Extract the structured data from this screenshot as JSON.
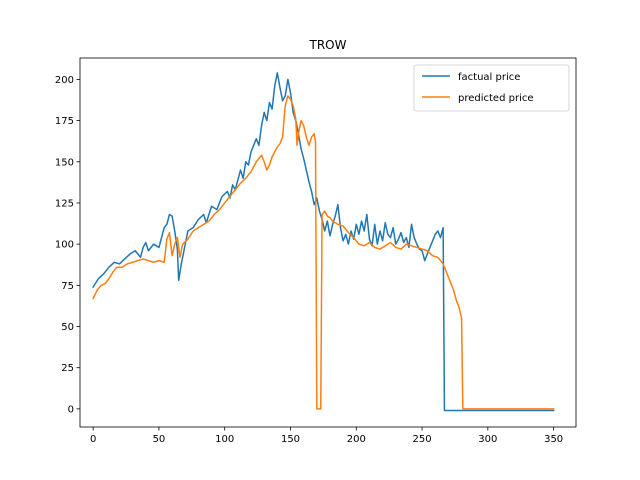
{
  "chart_data": {
    "type": "line",
    "title": "TROW",
    "xlabel": "",
    "ylabel": "",
    "xlim": [
      -10,
      367
    ],
    "ylim": [
      -11,
      213
    ],
    "xticks": [
      0,
      50,
      100,
      150,
      200,
      250,
      300,
      350
    ],
    "yticks": [
      0,
      25,
      50,
      75,
      100,
      125,
      150,
      175,
      200
    ],
    "grid": false,
    "legend_position": "top-right",
    "series": [
      {
        "name": "factual price",
        "color": "#1f77b4",
        "points": [
          [
            0,
            74
          ],
          [
            4,
            79
          ],
          [
            8,
            82
          ],
          [
            12,
            86
          ],
          [
            16,
            89
          ],
          [
            20,
            88
          ],
          [
            24,
            91
          ],
          [
            28,
            94
          ],
          [
            32,
            96
          ],
          [
            36,
            92
          ],
          [
            38,
            98
          ],
          [
            40,
            101
          ],
          [
            42,
            96
          ],
          [
            46,
            100
          ],
          [
            50,
            98
          ],
          [
            52,
            104
          ],
          [
            54,
            110
          ],
          [
            56,
            112
          ],
          [
            58,
            118
          ],
          [
            60,
            117
          ],
          [
            62,
            108
          ],
          [
            64,
            97
          ],
          [
            65,
            78
          ],
          [
            67,
            88
          ],
          [
            70,
            100
          ],
          [
            72,
            108
          ],
          [
            76,
            110
          ],
          [
            80,
            115
          ],
          [
            84,
            118
          ],
          [
            86,
            113
          ],
          [
            90,
            123
          ],
          [
            94,
            121
          ],
          [
            98,
            129
          ],
          [
            102,
            132
          ],
          [
            104,
            128
          ],
          [
            106,
            136
          ],
          [
            108,
            133
          ],
          [
            110,
            139
          ],
          [
            112,
            145
          ],
          [
            114,
            140
          ],
          [
            116,
            150
          ],
          [
            118,
            148
          ],
          [
            120,
            156
          ],
          [
            124,
            164
          ],
          [
            126,
            160
          ],
          [
            128,
            172
          ],
          [
            130,
            180
          ],
          [
            132,
            175
          ],
          [
            134,
            186
          ],
          [
            136,
            182
          ],
          [
            138,
            196
          ],
          [
            140,
            204
          ],
          [
            142,
            195
          ],
          [
            144,
            187
          ],
          [
            146,
            190
          ],
          [
            148,
            200
          ],
          [
            150,
            192
          ],
          [
            152,
            180
          ],
          [
            154,
            175
          ],
          [
            156,
            167
          ],
          [
            158,
            158
          ],
          [
            160,
            152
          ],
          [
            162,
            145
          ],
          [
            164,
            138
          ],
          [
            166,
            132
          ],
          [
            168,
            124
          ],
          [
            170,
            128
          ],
          [
            172,
            120
          ],
          [
            174,
            115
          ],
          [
            176,
            108
          ],
          [
            178,
            114
          ],
          [
            180,
            105
          ],
          [
            182,
            112
          ],
          [
            184,
            117
          ],
          [
            186,
            124
          ],
          [
            188,
            110
          ],
          [
            190,
            102
          ],
          [
            192,
            106
          ],
          [
            194,
            100
          ],
          [
            196,
            108
          ],
          [
            198,
            103
          ],
          [
            200,
            112
          ],
          [
            202,
            106
          ],
          [
            204,
            114
          ],
          [
            206,
            108
          ],
          [
            208,
            118
          ],
          [
            210,
            103
          ],
          [
            212,
            99
          ],
          [
            214,
            112
          ],
          [
            216,
            100
          ],
          [
            218,
            108
          ],
          [
            220,
            102
          ],
          [
            222,
            113
          ],
          [
            224,
            106
          ],
          [
            226,
            104
          ],
          [
            228,
            110
          ],
          [
            230,
            100
          ],
          [
            232,
            103
          ],
          [
            234,
            107
          ],
          [
            236,
            101
          ],
          [
            238,
            104
          ],
          [
            240,
            98
          ],
          [
            242,
            112
          ],
          [
            244,
            104
          ],
          [
            246,
            100
          ],
          [
            248,
            97
          ],
          [
            250,
            96
          ],
          [
            252,
            90
          ],
          [
            254,
            94
          ],
          [
            256,
            98
          ],
          [
            258,
            102
          ],
          [
            260,
            106
          ],
          [
            262,
            108
          ],
          [
            264,
            104
          ],
          [
            266,
            110
          ],
          [
            267,
            -1
          ],
          [
            350,
            -1
          ]
        ]
      },
      {
        "name": "predicted price",
        "color": "#ff7f0e",
        "points": [
          [
            0,
            67
          ],
          [
            3,
            72
          ],
          [
            6,
            75
          ],
          [
            9,
            76
          ],
          [
            12,
            79
          ],
          [
            15,
            83
          ],
          [
            18,
            86
          ],
          [
            22,
            86
          ],
          [
            26,
            88
          ],
          [
            30,
            89
          ],
          [
            34,
            90
          ],
          [
            38,
            91
          ],
          [
            42,
            90
          ],
          [
            46,
            89
          ],
          [
            50,
            90
          ],
          [
            54,
            89
          ],
          [
            56,
            103
          ],
          [
            58,
            107
          ],
          [
            60,
            93
          ],
          [
            62,
            100
          ],
          [
            64,
            104
          ],
          [
            66,
            92
          ],
          [
            68,
            100
          ],
          [
            72,
            103
          ],
          [
            76,
            108
          ],
          [
            80,
            110
          ],
          [
            84,
            112
          ],
          [
            88,
            114
          ],
          [
            92,
            118
          ],
          [
            96,
            121
          ],
          [
            100,
            125
          ],
          [
            104,
            129
          ],
          [
            108,
            133
          ],
          [
            112,
            137
          ],
          [
            116,
            140
          ],
          [
            120,
            144
          ],
          [
            124,
            150
          ],
          [
            128,
            154
          ],
          [
            130,
            150
          ],
          [
            132,
            145
          ],
          [
            134,
            148
          ],
          [
            136,
            153
          ],
          [
            138,
            156
          ],
          [
            140,
            159
          ],
          [
            142,
            161
          ],
          [
            144,
            165
          ],
          [
            145,
            175
          ],
          [
            146,
            184
          ],
          [
            148,
            190
          ],
          [
            150,
            188
          ],
          [
            152,
            184
          ],
          [
            154,
            176
          ],
          [
            155,
            160
          ],
          [
            156,
            167
          ],
          [
            158,
            175
          ],
          [
            160,
            172
          ],
          [
            162,
            165
          ],
          [
            164,
            160
          ],
          [
            166,
            165
          ],
          [
            168,
            167
          ],
          [
            169,
            162
          ],
          [
            170,
            0
          ],
          [
            173,
            0
          ],
          [
            174,
            118
          ],
          [
            176,
            120
          ],
          [
            178,
            117
          ],
          [
            180,
            116
          ],
          [
            182,
            114
          ],
          [
            186,
            112
          ],
          [
            190,
            111
          ],
          [
            194,
            107
          ],
          [
            198,
            104
          ],
          [
            202,
            100
          ],
          [
            206,
            99
          ],
          [
            210,
            101
          ],
          [
            214,
            98
          ],
          [
            218,
            97
          ],
          [
            222,
            99
          ],
          [
            226,
            101
          ],
          [
            230,
            98
          ],
          [
            234,
            97
          ],
          [
            238,
            100
          ],
          [
            242,
            99
          ],
          [
            246,
            98
          ],
          [
            250,
            97
          ],
          [
            254,
            96
          ],
          [
            258,
            93
          ],
          [
            262,
            92
          ],
          [
            266,
            88
          ],
          [
            270,
            80
          ],
          [
            274,
            72
          ],
          [
            276,
            66
          ],
          [
            278,
            62
          ],
          [
            280,
            55
          ],
          [
            281,
            0
          ],
          [
            350,
            0
          ]
        ]
      }
    ]
  }
}
